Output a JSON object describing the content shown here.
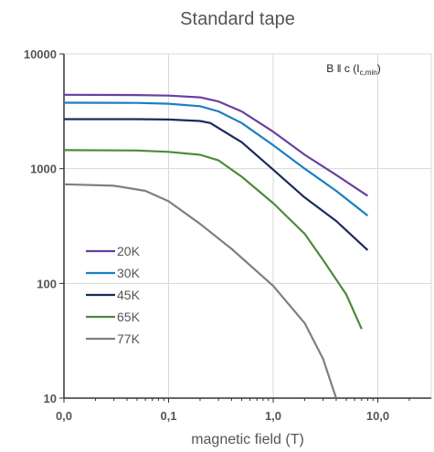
{
  "chart_data": {
    "type": "line",
    "title": "Standard tape",
    "xlabel": "magnetic field (T)",
    "ylabel": "",
    "x_scale": "log",
    "y_scale": "log",
    "xlim": [
      0.01,
      20
    ],
    "ylim": [
      10,
      10000
    ],
    "x_tick_labels": [
      "0,0",
      "0,1",
      "1,0",
      "10,0"
    ],
    "y_tick_labels": [
      "10",
      "100",
      "1000",
      "10000"
    ],
    "grid": true,
    "legend_position": "bottom-left",
    "annotation": {
      "main": "B ǁ c (I",
      "sub": "c,min",
      "close": ")"
    },
    "series": [
      {
        "name": "20K",
        "color": "#6a3fa0",
        "x": [
          0.01,
          0.05,
          0.1,
          0.2,
          0.3,
          0.5,
          1,
          2,
          4,
          8
        ],
        "y": [
          4400,
          4380,
          4330,
          4180,
          3850,
          3150,
          2100,
          1320,
          880,
          580
        ]
      },
      {
        "name": "30K",
        "color": "#1b7fc0",
        "x": [
          0.01,
          0.05,
          0.1,
          0.2,
          0.3,
          0.5,
          1,
          2,
          4,
          8
        ],
        "y": [
          3750,
          3740,
          3680,
          3500,
          3150,
          2500,
          1600,
          1000,
          640,
          390
        ]
      },
      {
        "name": "45K",
        "color": "#1a2a5e",
        "x": [
          0.01,
          0.05,
          0.1,
          0.2,
          0.25,
          0.5,
          1,
          2,
          4,
          8
        ],
        "y": [
          2700,
          2700,
          2680,
          2600,
          2500,
          1700,
          980,
          560,
          350,
          195
        ]
      },
      {
        "name": "65K",
        "color": "#4e8a3a",
        "x": [
          0.01,
          0.05,
          0.1,
          0.2,
          0.3,
          0.5,
          1,
          2,
          3,
          5,
          7
        ],
        "y": [
          1450,
          1440,
          1400,
          1320,
          1180,
          850,
          500,
          270,
          160,
          80,
          40
        ]
      },
      {
        "name": "77K",
        "color": "#7f7f7f",
        "x": [
          0.01,
          0.03,
          0.06,
          0.1,
          0.2,
          0.4,
          1,
          2,
          3,
          4
        ],
        "y": [
          730,
          710,
          640,
          520,
          330,
          200,
          95,
          45,
          22,
          10
        ]
      }
    ]
  }
}
